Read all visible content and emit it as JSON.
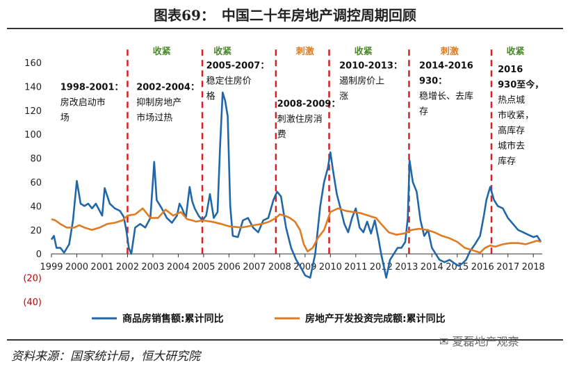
{
  "title": "图表69：　中国二十年房地产调控周期回顾",
  "source": "资料来源：国家统计局，恒大研究院",
  "watermark": "夏磊地产观察",
  "chart_data": {
    "type": "line",
    "xlim": [
      1999,
      2018.35
    ],
    "ylim": [
      -40,
      160
    ],
    "yticks": [
      -40,
      -20,
      0,
      20,
      40,
      60,
      80,
      100,
      120,
      140,
      160
    ],
    "ytick_labels": [
      "(40)",
      "(20)",
      "0",
      "20",
      "40",
      "60",
      "80",
      "100",
      "120",
      "140",
      "160"
    ],
    "xticks": [
      1999,
      2000,
      2001,
      2002,
      2003,
      2004,
      2005,
      2006,
      2007,
      2008,
      2009,
      2010,
      2011,
      2012,
      2013,
      2014,
      2015,
      2016,
      2017,
      2018
    ],
    "xtick_labels": [
      "1999",
      "2000",
      "2001",
      "2002",
      "2003",
      "2004",
      "2005",
      "2006",
      "2007",
      "2008",
      "2009",
      "2010",
      "2011",
      "2012",
      "2013",
      "2014",
      "2015",
      "2016",
      "2017",
      "2018"
    ],
    "policy_lines": [
      2002.0,
      2004.95,
      2007.85,
      2009.95,
      2013.1,
      2016.35
    ],
    "period_labels": [
      {
        "x": 2005.75,
        "text": "收紧",
        "kind": "tighten"
      },
      {
        "x": 2009.0,
        "text": "刺激",
        "kind": "stimulus"
      },
      {
        "x": 2011.3,
        "text": "收紧",
        "kind": "tighten"
      },
      {
        "x": 2014.7,
        "text": "刺激",
        "kind": "stimulus"
      },
      {
        "x": 2017.3,
        "text": "收紧",
        "kind": "tighten"
      },
      {
        "x": 2003.35,
        "text": "收紧",
        "kind": "tighten"
      }
    ],
    "annotations": [
      {
        "x": 1999.35,
        "y": 137,
        "lines": [
          "1998-2001：",
          "房改启动市",
          "场"
        ]
      },
      {
        "x": 2002.35,
        "y": 137,
        "lines": [
          "2002-2004：",
          "抑制房地产",
          "市场过热"
        ]
      },
      {
        "x": 2005.1,
        "y": 155,
        "lines": [
          "2005-2007：",
          "稳定住房价",
          "格"
        ]
      },
      {
        "x": 2007.9,
        "y": 123,
        "lines": [
          "2008-2009：",
          "刺激住房消",
          "费"
        ]
      },
      {
        "x": 2010.35,
        "y": 155,
        "lines": [
          "2010-2013：",
          "遏制房价上",
          "涨"
        ]
      },
      {
        "x": 2013.5,
        "y": 155,
        "lines": [
          "2014-2016",
          "930：",
          "稳增长、去库",
          "存"
        ]
      },
      {
        "x": 2016.6,
        "y": 152,
        "lines": [
          "2016",
          "930至今，",
          "热点城",
          "市收紧，",
          "高库存",
          "城市去",
          "库存"
        ]
      }
    ],
    "series": [
      {
        "name": "商品房销售额:累计同比",
        "color": "#2066a8",
        "x": [
          1999.0,
          1999.1,
          1999.2,
          1999.35,
          1999.5,
          1999.7,
          1999.85,
          2000.0,
          2000.15,
          2000.3,
          2000.45,
          2000.6,
          2000.75,
          2000.9,
          2001.0,
          2001.1,
          2001.3,
          2001.5,
          2001.7,
          2001.85,
          2001.95,
          2002.05,
          2002.15,
          2002.3,
          2002.5,
          2002.7,
          2002.9,
          2003.0,
          2003.05,
          2003.15,
          2003.35,
          2003.55,
          2003.75,
          2003.95,
          2004.05,
          2004.15,
          2004.3,
          2004.45,
          2004.55,
          2004.65,
          2004.8,
          2004.95,
          2005.1,
          2005.25,
          2005.4,
          2005.55,
          2005.65,
          2005.75,
          2005.85,
          2005.95,
          2006.05,
          2006.15,
          2006.35,
          2006.55,
          2006.75,
          2006.95,
          2007.15,
          2007.35,
          2007.55,
          2007.75,
          2007.9,
          2008.05,
          2008.25,
          2008.45,
          2008.65,
          2008.85,
          2009.0,
          2009.2,
          2009.4,
          2009.6,
          2009.75,
          2009.9,
          2010.0,
          2010.1,
          2010.25,
          2010.4,
          2010.55,
          2010.7,
          2010.85,
          2011.0,
          2011.15,
          2011.3,
          2011.45,
          2011.6,
          2011.75,
          2011.9,
          2012.0,
          2012.1,
          2012.2,
          2012.35,
          2012.5,
          2012.65,
          2012.8,
          2012.95,
          2013.05,
          2013.12,
          2013.25,
          2013.4,
          2013.55,
          2013.7,
          2013.85,
          2014.0,
          2014.15,
          2014.3,
          2014.5,
          2014.7,
          2014.9,
          2015.05,
          2015.2,
          2015.35,
          2015.5,
          2015.7,
          2015.9,
          2016.05,
          2016.15,
          2016.3,
          2016.45,
          2016.6,
          2016.8,
          2017.0,
          2017.2,
          2017.4,
          2017.6,
          2017.8,
          2018.0,
          2018.15,
          2018.3
        ],
        "y": [
          12,
          15,
          5,
          5,
          1,
          8,
          28,
          61,
          42,
          40,
          42,
          38,
          42,
          36,
          32,
          55,
          42,
          38,
          36,
          31,
          20,
          5,
          0,
          22,
          25,
          22,
          30,
          60,
          77,
          45,
          38,
          30,
          26,
          32,
          42,
          38,
          30,
          56,
          44,
          38,
          32,
          28,
          32,
          50,
          30,
          35,
          90,
          135,
          128,
          115,
          40,
          15,
          14,
          28,
          30,
          22,
          18,
          28,
          30,
          45,
          52,
          48,
          22,
          5,
          -5,
          -12,
          -18,
          -20,
          0,
          40,
          60,
          72,
          85,
          70,
          50,
          38,
          25,
          18,
          30,
          38,
          22,
          18,
          27,
          17,
          28,
          12,
          0,
          -10,
          -20,
          -5,
          0,
          5,
          5,
          10,
          30,
          78,
          60,
          52,
          28,
          15,
          20,
          5,
          0,
          -5,
          -7,
          -5,
          -8,
          -10,
          -8,
          -5,
          2,
          8,
          15,
          32,
          45,
          56,
          45,
          40,
          38,
          30,
          25,
          20,
          18,
          16,
          14,
          15,
          10
        ]
      },
      {
        "name": "房地产开发投资完成额:累计同比",
        "color": "#e07b22",
        "x": [
          1999.0,
          1999.15,
          1999.35,
          1999.6,
          1999.9,
          2000.1,
          2000.3,
          2000.6,
          2000.9,
          2001.2,
          2001.5,
          2001.8,
          2002.0,
          2002.3,
          2002.6,
          2002.9,
          2003.2,
          2003.5,
          2003.8,
          2004.1,
          2004.35,
          2004.55,
          2004.7,
          2004.95,
          2005.3,
          2005.7,
          2006.0,
          2006.5,
          2007.0,
          2007.3,
          2007.6,
          2007.85,
          2008.0,
          2008.2,
          2008.4,
          2008.6,
          2008.8,
          2008.95,
          2009.1,
          2009.3,
          2009.5,
          2009.75,
          2010.0,
          2010.3,
          2010.6,
          2010.9,
          2011.2,
          2011.5,
          2011.8,
          2012.0,
          2012.3,
          2012.6,
          2012.9,
          2013.2,
          2013.5,
          2013.8,
          2014.1,
          2014.4,
          2014.7,
          2015.0,
          2015.3,
          2015.6,
          2015.9,
          2016.1,
          2016.3,
          2016.5,
          2016.8,
          2017.1,
          2017.4,
          2017.7,
          2018.0,
          2018.15,
          2018.3
        ],
        "y": [
          29,
          28,
          25,
          22,
          22,
          24,
          22,
          20,
          22,
          25,
          26,
          28,
          32,
          33,
          38,
          30,
          30,
          37,
          32,
          35,
          29,
          28,
          27,
          28,
          27,
          25,
          23,
          22,
          24,
          25,
          27,
          30,
          33,
          32,
          30,
          27,
          20,
          8,
          2,
          5,
          13,
          20,
          35,
          38,
          36,
          35,
          34,
          32,
          30,
          25,
          18,
          16,
          17,
          20,
          21,
          20,
          18,
          15,
          13,
          10,
          5,
          3,
          1,
          5,
          7,
          6,
          8,
          9,
          9,
          8,
          10,
          11,
          10
        ]
      }
    ]
  }
}
